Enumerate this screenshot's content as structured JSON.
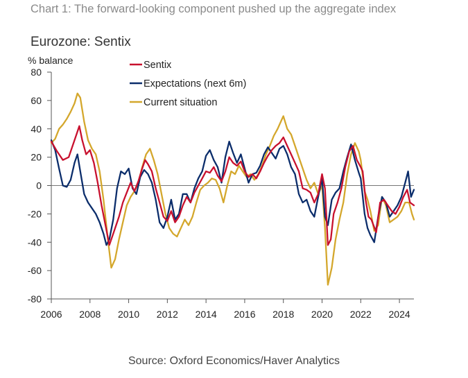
{
  "header": {
    "caption": "Chart 1: The forward-looking component pushed up the aggregate index",
    "chart_title": "Eurozone: Sentix"
  },
  "footer": {
    "source": "Source: Oxford Economics/Haver Analytics"
  },
  "chart_data": {
    "type": "line",
    "title": "Eurozone: Sentix",
    "ylabel": "% balance",
    "xlabel": "",
    "xlim": [
      2006,
      2024.75
    ],
    "ylim": [
      -80,
      80
    ],
    "x_ticks": [
      2006,
      2008,
      2010,
      2012,
      2014,
      2016,
      2018,
      2020,
      2022,
      2024
    ],
    "y_ticks": [
      -80,
      -60,
      -40,
      -20,
      0,
      20,
      40,
      60,
      80
    ],
    "grid": false,
    "zero_line": true,
    "legend_position": "top-center",
    "series": [
      {
        "name": "Sentix",
        "color": "#c8102e",
        "points": [
          [
            2006.0,
            31
          ],
          [
            2006.3,
            24
          ],
          [
            2006.6,
            18
          ],
          [
            2006.9,
            20
          ],
          [
            2007.1,
            28
          ],
          [
            2007.3,
            36
          ],
          [
            2007.45,
            42
          ],
          [
            2007.6,
            32
          ],
          [
            2007.8,
            22
          ],
          [
            2008.0,
            25
          ],
          [
            2008.2,
            16
          ],
          [
            2008.4,
            2
          ],
          [
            2008.6,
            -14
          ],
          [
            2008.8,
            -28
          ],
          [
            2009.0,
            -42
          ],
          [
            2009.2,
            -34
          ],
          [
            2009.5,
            -22
          ],
          [
            2009.7,
            -12
          ],
          [
            2009.9,
            -5
          ],
          [
            2010.1,
            2
          ],
          [
            2010.3,
            -4
          ],
          [
            2010.5,
            3
          ],
          [
            2010.7,
            12
          ],
          [
            2010.85,
            18
          ],
          [
            2011.0,
            15
          ],
          [
            2011.2,
            10
          ],
          [
            2011.4,
            -2
          ],
          [
            2011.6,
            -12
          ],
          [
            2011.8,
            -22
          ],
          [
            2012.0,
            -25
          ],
          [
            2012.2,
            -18
          ],
          [
            2012.4,
            -26
          ],
          [
            2012.6,
            -22
          ],
          [
            2012.8,
            -14
          ],
          [
            2013.0,
            -8
          ],
          [
            2013.2,
            -12
          ],
          [
            2013.4,
            -5
          ],
          [
            2013.6,
            0
          ],
          [
            2013.8,
            5
          ],
          [
            2014.0,
            10
          ],
          [
            2014.2,
            9
          ],
          [
            2014.4,
            13
          ],
          [
            2014.6,
            7
          ],
          [
            2014.8,
            3
          ],
          [
            2015.0,
            10
          ],
          [
            2015.2,
            20
          ],
          [
            2015.4,
            16
          ],
          [
            2015.6,
            14
          ],
          [
            2015.8,
            17
          ],
          [
            2016.0,
            10
          ],
          [
            2016.2,
            6
          ],
          [
            2016.4,
            8
          ],
          [
            2016.6,
            5
          ],
          [
            2016.8,
            10
          ],
          [
            2017.0,
            16
          ],
          [
            2017.2,
            21
          ],
          [
            2017.4,
            25
          ],
          [
            2017.6,
            28
          ],
          [
            2017.8,
            30
          ],
          [
            2018.0,
            34
          ],
          [
            2018.2,
            28
          ],
          [
            2018.4,
            22
          ],
          [
            2018.6,
            16
          ],
          [
            2018.8,
            10
          ],
          [
            2019.0,
            -2
          ],
          [
            2019.2,
            -3
          ],
          [
            2019.4,
            -5
          ],
          [
            2019.6,
            -12
          ],
          [
            2019.8,
            -6
          ],
          [
            2020.0,
            8
          ],
          [
            2020.15,
            -2
          ],
          [
            2020.3,
            -42
          ],
          [
            2020.45,
            -38
          ],
          [
            2020.6,
            -20
          ],
          [
            2020.8,
            -12
          ],
          [
            2021.0,
            -2
          ],
          [
            2021.2,
            13
          ],
          [
            2021.4,
            24
          ],
          [
            2021.6,
            28
          ],
          [
            2021.8,
            18
          ],
          [
            2022.0,
            13
          ],
          [
            2022.1,
            10
          ],
          [
            2022.25,
            -10
          ],
          [
            2022.4,
            -22
          ],
          [
            2022.55,
            -24
          ],
          [
            2022.8,
            -33
          ],
          [
            2023.0,
            -12
          ],
          [
            2023.2,
            -10
          ],
          [
            2023.4,
            -14
          ],
          [
            2023.6,
            -18
          ],
          [
            2023.8,
            -20
          ],
          [
            2024.0,
            -15
          ],
          [
            2024.2,
            -8
          ],
          [
            2024.4,
            -3
          ],
          [
            2024.55,
            -12
          ],
          [
            2024.75,
            -14
          ]
        ]
      },
      {
        "name": "Expectations (next 6m)",
        "color": "#0b2d6b",
        "points": [
          [
            2006.0,
            32
          ],
          [
            2006.2,
            25
          ],
          [
            2006.4,
            12
          ],
          [
            2006.6,
            0
          ],
          [
            2006.8,
            -1
          ],
          [
            2007.0,
            4
          ],
          [
            2007.2,
            16
          ],
          [
            2007.35,
            22
          ],
          [
            2007.5,
            10
          ],
          [
            2007.7,
            -6
          ],
          [
            2007.9,
            -12
          ],
          [
            2008.1,
            -16
          ],
          [
            2008.3,
            -20
          ],
          [
            2008.5,
            -26
          ],
          [
            2008.7,
            -34
          ],
          [
            2008.85,
            -42
          ],
          [
            2009.0,
            -38
          ],
          [
            2009.2,
            -24
          ],
          [
            2009.4,
            -2
          ],
          [
            2009.6,
            10
          ],
          [
            2009.8,
            8
          ],
          [
            2010.0,
            12
          ],
          [
            2010.2,
            -2
          ],
          [
            2010.4,
            -6
          ],
          [
            2010.6,
            6
          ],
          [
            2010.8,
            11
          ],
          [
            2011.0,
            8
          ],
          [
            2011.2,
            2
          ],
          [
            2011.4,
            -10
          ],
          [
            2011.6,
            -26
          ],
          [
            2011.8,
            -30
          ],
          [
            2012.0,
            -22
          ],
          [
            2012.2,
            -10
          ],
          [
            2012.4,
            -24
          ],
          [
            2012.6,
            -20
          ],
          [
            2012.8,
            -6
          ],
          [
            2013.0,
            -6
          ],
          [
            2013.2,
            -12
          ],
          [
            2013.4,
            -2
          ],
          [
            2013.6,
            5
          ],
          [
            2013.8,
            10
          ],
          [
            2014.0,
            21
          ],
          [
            2014.2,
            25
          ],
          [
            2014.4,
            18
          ],
          [
            2014.6,
            13
          ],
          [
            2014.8,
            2
          ],
          [
            2015.0,
            20
          ],
          [
            2015.2,
            31
          ],
          [
            2015.4,
            23
          ],
          [
            2015.6,
            16
          ],
          [
            2015.8,
            22
          ],
          [
            2016.0,
            12
          ],
          [
            2016.2,
            2
          ],
          [
            2016.4,
            8
          ],
          [
            2016.6,
            9
          ],
          [
            2016.8,
            14
          ],
          [
            2017.0,
            22
          ],
          [
            2017.2,
            27
          ],
          [
            2017.4,
            23
          ],
          [
            2017.6,
            19
          ],
          [
            2017.8,
            26
          ],
          [
            2018.0,
            28
          ],
          [
            2018.2,
            22
          ],
          [
            2018.4,
            13
          ],
          [
            2018.6,
            8
          ],
          [
            2018.8,
            -6
          ],
          [
            2019.0,
            -12
          ],
          [
            2019.2,
            -10
          ],
          [
            2019.4,
            -18
          ],
          [
            2019.6,
            -22
          ],
          [
            2019.8,
            -8
          ],
          [
            2020.0,
            5
          ],
          [
            2020.15,
            -22
          ],
          [
            2020.3,
            -28
          ],
          [
            2020.5,
            -10
          ],
          [
            2020.7,
            -5
          ],
          [
            2020.9,
            -2
          ],
          [
            2021.1,
            10
          ],
          [
            2021.3,
            20
          ],
          [
            2021.5,
            29
          ],
          [
            2021.7,
            18
          ],
          [
            2021.9,
            9
          ],
          [
            2022.0,
            5
          ],
          [
            2022.2,
            -20
          ],
          [
            2022.35,
            -30
          ],
          [
            2022.5,
            -35
          ],
          [
            2022.7,
            -40
          ],
          [
            2022.9,
            -22
          ],
          [
            2023.1,
            -8
          ],
          [
            2023.3,
            -12
          ],
          [
            2023.5,
            -22
          ],
          [
            2023.7,
            -18
          ],
          [
            2023.9,
            -14
          ],
          [
            2024.1,
            -8
          ],
          [
            2024.3,
            2
          ],
          [
            2024.45,
            10
          ],
          [
            2024.6,
            -8
          ],
          [
            2024.75,
            -3
          ]
        ]
      },
      {
        "name": "Current situation",
        "color": "#d4a72c",
        "points": [
          [
            2006.0,
            30
          ],
          [
            2006.2,
            33
          ],
          [
            2006.4,
            40
          ],
          [
            2006.6,
            43
          ],
          [
            2006.8,
            47
          ],
          [
            2007.0,
            52
          ],
          [
            2007.2,
            58
          ],
          [
            2007.35,
            65
          ],
          [
            2007.5,
            62
          ],
          [
            2007.7,
            45
          ],
          [
            2007.9,
            32
          ],
          [
            2008.1,
            26
          ],
          [
            2008.3,
            22
          ],
          [
            2008.5,
            10
          ],
          [
            2008.7,
            -10
          ],
          [
            2008.9,
            -35
          ],
          [
            2009.1,
            -58
          ],
          [
            2009.3,
            -52
          ],
          [
            2009.5,
            -38
          ],
          [
            2009.7,
            -26
          ],
          [
            2009.9,
            -14
          ],
          [
            2010.1,
            -8
          ],
          [
            2010.3,
            -4
          ],
          [
            2010.5,
            2
          ],
          [
            2010.7,
            13
          ],
          [
            2010.9,
            22
          ],
          [
            2011.1,
            26
          ],
          [
            2011.3,
            18
          ],
          [
            2011.5,
            8
          ],
          [
            2011.7,
            -6
          ],
          [
            2011.9,
            -20
          ],
          [
            2012.1,
            -30
          ],
          [
            2012.3,
            -34
          ],
          [
            2012.5,
            -36
          ],
          [
            2012.7,
            -30
          ],
          [
            2012.9,
            -24
          ],
          [
            2013.1,
            -28
          ],
          [
            2013.3,
            -22
          ],
          [
            2013.5,
            -12
          ],
          [
            2013.7,
            -3
          ],
          [
            2013.9,
            0
          ],
          [
            2014.1,
            2
          ],
          [
            2014.3,
            5
          ],
          [
            2014.5,
            4
          ],
          [
            2014.7,
            -2
          ],
          [
            2014.9,
            -12
          ],
          [
            2015.1,
            0
          ],
          [
            2015.3,
            10
          ],
          [
            2015.5,
            8
          ],
          [
            2015.7,
            14
          ],
          [
            2015.9,
            10
          ],
          [
            2016.1,
            6
          ],
          [
            2016.3,
            8
          ],
          [
            2016.5,
            4
          ],
          [
            2016.7,
            8
          ],
          [
            2016.9,
            14
          ],
          [
            2017.1,
            22
          ],
          [
            2017.3,
            28
          ],
          [
            2017.5,
            35
          ],
          [
            2017.7,
            40
          ],
          [
            2017.9,
            46
          ],
          [
            2018.0,
            49
          ],
          [
            2018.2,
            40
          ],
          [
            2018.4,
            36
          ],
          [
            2018.6,
            28
          ],
          [
            2018.8,
            20
          ],
          [
            2019.0,
            12
          ],
          [
            2019.2,
            4
          ],
          [
            2019.4,
            -2
          ],
          [
            2019.6,
            2
          ],
          [
            2019.8,
            -6
          ],
          [
            2020.0,
            0
          ],
          [
            2020.15,
            -30
          ],
          [
            2020.3,
            -70
          ],
          [
            2020.5,
            -58
          ],
          [
            2020.7,
            -38
          ],
          [
            2020.9,
            -24
          ],
          [
            2021.1,
            -12
          ],
          [
            2021.3,
            8
          ],
          [
            2021.5,
            22
          ],
          [
            2021.7,
            30
          ],
          [
            2021.9,
            24
          ],
          [
            2022.0,
            18
          ],
          [
            2022.2,
            -4
          ],
          [
            2022.35,
            -10
          ],
          [
            2022.5,
            -18
          ],
          [
            2022.7,
            -32
          ],
          [
            2022.9,
            -28
          ],
          [
            2023.1,
            -8
          ],
          [
            2023.3,
            -14
          ],
          [
            2023.5,
            -26
          ],
          [
            2023.7,
            -24
          ],
          [
            2023.9,
            -22
          ],
          [
            2024.1,
            -18
          ],
          [
            2024.3,
            -12
          ],
          [
            2024.5,
            -12
          ],
          [
            2024.65,
            -20
          ],
          [
            2024.75,
            -24
          ]
        ]
      }
    ]
  }
}
